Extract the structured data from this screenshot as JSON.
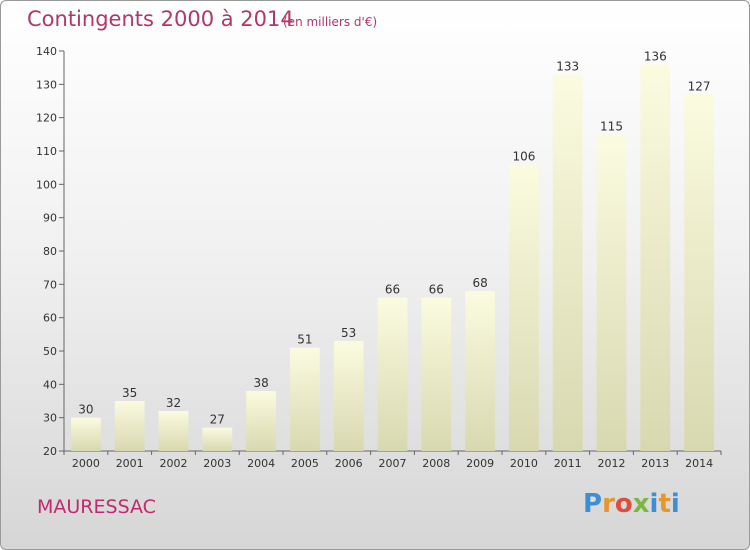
{
  "header": {
    "title": "Contingents 2000 à 2014",
    "subtitle": "(en milliers d'€)"
  },
  "footer": {
    "place": "MAURESSAC",
    "logo": "Proxiti"
  },
  "colors": {
    "title": "#b0376b",
    "place": "#c4296e",
    "bar_top": "#fbfbe0",
    "bar_bottom": "#dcdcb4"
  },
  "chart_data": {
    "type": "bar",
    "title": "Contingents 2000 à 2014",
    "subtitle": "(en milliers d'€)",
    "xlabel": "",
    "ylabel": "",
    "categories": [
      "2000",
      "2001",
      "2002",
      "2003",
      "2004",
      "2005",
      "2006",
      "2007",
      "2008",
      "2009",
      "2010",
      "2011",
      "2012",
      "2013",
      "2014"
    ],
    "values": [
      30,
      35,
      32,
      27,
      38,
      51,
      53,
      66,
      66,
      68,
      106,
      133,
      115,
      136,
      127
    ],
    "ylim": [
      20,
      140
    ],
    "yticks": [
      20,
      30,
      40,
      50,
      60,
      70,
      80,
      90,
      100,
      110,
      120,
      130,
      140
    ],
    "grid": false,
    "legend": "none"
  }
}
